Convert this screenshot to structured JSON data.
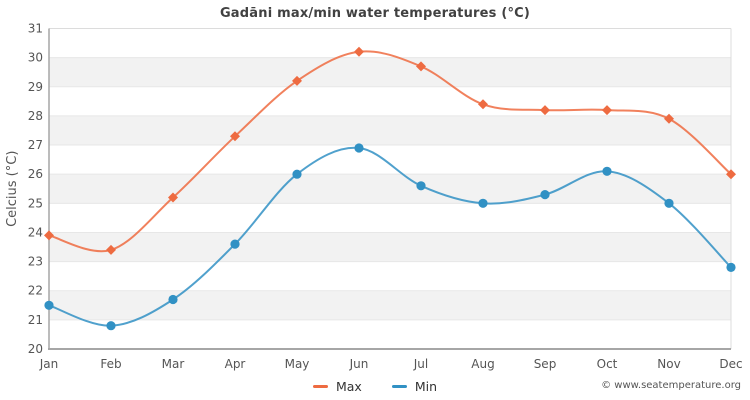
{
  "chart_data": {
    "type": "line",
    "title": "Gadāni max/min water temperatures (°C)",
    "xlabel": "",
    "ylabel": "Celcius (°C)",
    "categories": [
      "Jan",
      "Feb",
      "Mar",
      "Apr",
      "May",
      "Jun",
      "Jul",
      "Aug",
      "Sep",
      "Oct",
      "Nov",
      "Dec"
    ],
    "series": [
      {
        "name": "Max",
        "marker": "diamond",
        "color": "#ee6b41",
        "values": [
          23.9,
          23.4,
          25.2,
          27.3,
          29.2,
          30.2,
          29.7,
          28.4,
          28.2,
          28.2,
          27.9,
          26.0
        ]
      },
      {
        "name": "Min",
        "marker": "circle",
        "color": "#3191c4",
        "values": [
          21.5,
          20.8,
          21.7,
          23.6,
          26.0,
          26.9,
          25.6,
          25.0,
          25.3,
          26.1,
          25.0,
          22.8
        ]
      }
    ],
    "ylim": [
      20,
      31
    ],
    "y_tick_step": 1,
    "grid": "horizontal-bands",
    "curve": "smooth",
    "legend_position": "bottom-center"
  },
  "style_colors": {
    "band_fill": "#f2f2f2",
    "gridline": "#e7e7e7",
    "plot_border": "#dcdcdc",
    "axis_line": "#a6a6a6",
    "tick_label": "#555555",
    "title_text": "#414141"
  },
  "footer": {
    "copyright": "© www.seatemperature.org"
  }
}
